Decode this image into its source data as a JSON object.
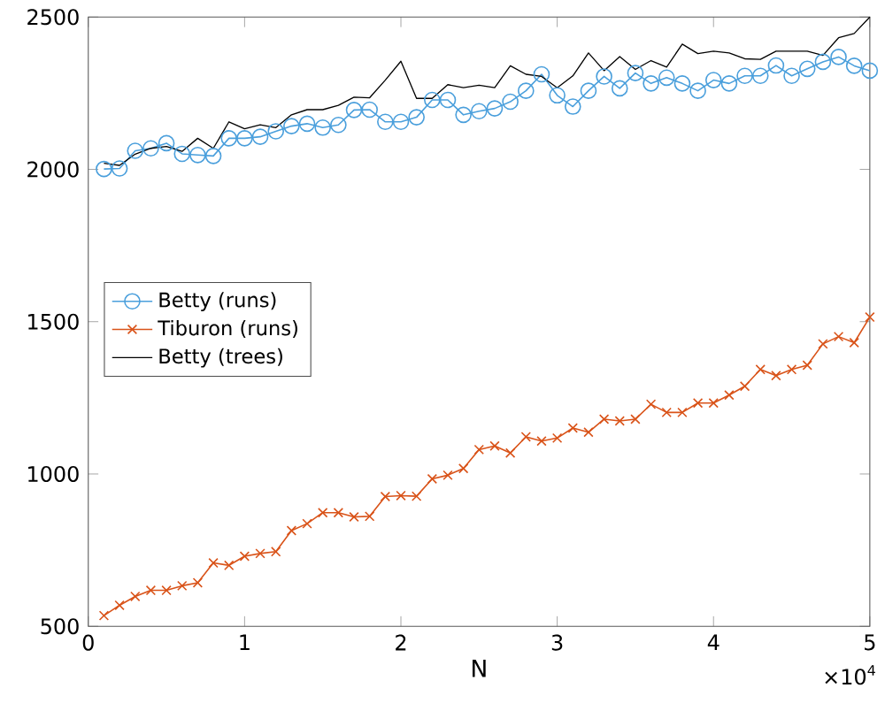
{
  "chart_data": {
    "type": "line",
    "xlabel": "N",
    "annotations": [
      "×10$^{4}$"
    ],
    "x": [
      0.1,
      0.2,
      0.3,
      0.4,
      0.5,
      0.6,
      0.7,
      0.8,
      0.9,
      1.0,
      1.1,
      1.2,
      1.3,
      1.4,
      1.5,
      1.6,
      1.7,
      1.8,
      1.9,
      2.0,
      2.1,
      2.2,
      2.3,
      2.4,
      2.5,
      2.6,
      2.7,
      2.8,
      2.9,
      3.0,
      3.1,
      3.2,
      3.3,
      3.4,
      3.5,
      3.6,
      3.7,
      3.8,
      3.9,
      4.0,
      4.1,
      4.2,
      4.3,
      4.4,
      4.5,
      4.6,
      4.7,
      4.8,
      4.9,
      5.0
    ],
    "series": [
      {
        "name": "Betty (runs)",
        "color": "#4a9fdc",
        "marker": "circle",
        "values": [
          2001,
          2003,
          2061,
          2069,
          2086,
          2051,
          2047,
          2044,
          2102,
          2102,
          2107,
          2125,
          2142,
          2150,
          2137,
          2146,
          2195,
          2196,
          2156,
          2156,
          2171,
          2228,
          2228,
          2179,
          2191,
          2200,
          2222,
          2258,
          2312,
          2243,
          2206,
          2258,
          2305,
          2266,
          2316,
          2282,
          2301,
          2282,
          2258,
          2293,
          2282,
          2307,
          2307,
          2341,
          2307,
          2330,
          2353,
          2369,
          2340,
          2324
        ]
      },
      {
        "name": "Tiburon (runs)",
        "color": "#d95319",
        "marker": "cross",
        "values": [
          535,
          569,
          598,
          618,
          618,
          633,
          643,
          708,
          700,
          730,
          739,
          745,
          814,
          837,
          873,
          873,
          859,
          861,
          926,
          929,
          927,
          984,
          996,
          1018,
          1080,
          1092,
          1069,
          1122,
          1108,
          1118,
          1151,
          1137,
          1180,
          1174,
          1180,
          1229,
          1202,
          1202,
          1233,
          1233,
          1259,
          1288,
          1343,
          1323,
          1343,
          1357,
          1427,
          1451,
          1431,
          1515
        ]
      },
      {
        "name": "Betty (trees)",
        "color": "#000000",
        "marker": "none",
        "values": [
          2020,
          2013,
          2050,
          2069,
          2075,
          2059,
          2102,
          2069,
          2156,
          2133,
          2146,
          2137,
          2179,
          2196,
          2196,
          2210,
          2237,
          2235,
          2293,
          2355,
          2233,
          2233,
          2278,
          2268,
          2276,
          2268,
          2340,
          2312,
          2305,
          2268,
          2307,
          2382,
          2324,
          2370,
          2328,
          2357,
          2336,
          2411,
          2380,
          2388,
          2382,
          2363,
          2361,
          2388,
          2388,
          2388,
          2374,
          2432,
          2446,
          2500
        ]
      }
    ],
    "xlim": [
      0,
      5
    ],
    "ylim": [
      500,
      2500
    ],
    "xticks": [
      0,
      1,
      2,
      3,
      4,
      5
    ],
    "yticks": [
      500,
      1000,
      1500,
      2000,
      2500
    ],
    "legend": "left"
  }
}
